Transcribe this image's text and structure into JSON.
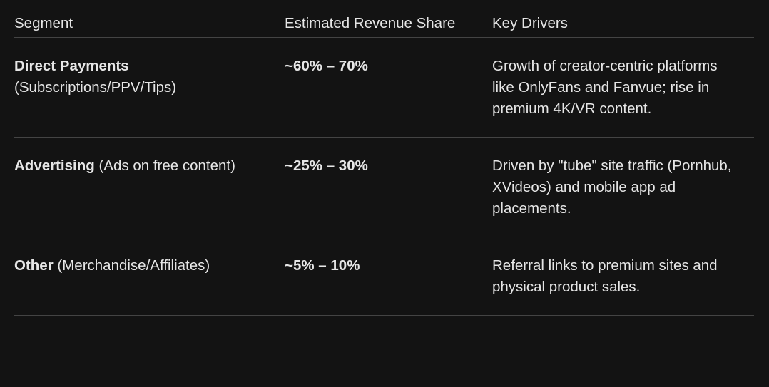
{
  "headers": [
    "Segment",
    "Estimated Revenue Share",
    "Key Drivers"
  ],
  "rows": [
    {
      "segment": "Direct Payments",
      "segment_note": "(Subscriptions/PPV/Tips)",
      "share": "~60% – 70%",
      "drivers": "Growth of creator-centric platforms like OnlyFans and Fanvue; rise in premium 4K/VR content."
    },
    {
      "segment": "Advertising",
      "segment_note": "(Ads on free content)",
      "share": "~25% – 30%",
      "drivers": "Driven by \"tube\" site traffic (Pornhub, XVideos) and mobile app ad placements."
    },
    {
      "segment": "Other",
      "segment_note": "(Merchandise/Affiliates)",
      "share": "~5% – 10%",
      "drivers": "Referral links to premium sites and physical product sales."
    }
  ]
}
